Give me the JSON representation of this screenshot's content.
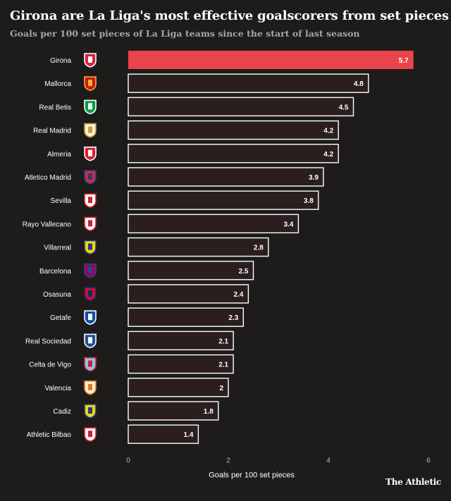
{
  "title": "Girona are La Liga's most effective goalscorers from set pieces",
  "subtitle": "Goals per 100 set pieces of La Liga teams since the start of last season",
  "brand": "The Athletic",
  "chart_data": {
    "type": "bar",
    "orientation": "horizontal",
    "categories": [
      "Girona",
      "Mallorca",
      "Real Betis",
      "Real Madrid",
      "Almeria",
      "Atletico Madrid",
      "Sevilla",
      "Rayo Vallecano",
      "Villarreal",
      "Barcelona",
      "Osasuna",
      "Getafe",
      "Real Sociedad",
      "Celta de Vigo",
      "Valencia",
      "Cadiz",
      "Athletic Bilbao"
    ],
    "values": [
      5.7,
      4.8,
      4.5,
      4.2,
      4.2,
      3.9,
      3.8,
      3.4,
      2.8,
      2.5,
      2.4,
      2.3,
      2.1,
      2.1,
      2,
      1.8,
      1.4
    ],
    "value_labels": [
      "5.7",
      "4.8",
      "4.5",
      "4.2",
      "4.2",
      "3.9",
      "3.8",
      "3.4",
      "2.8",
      "2.5",
      "2.4",
      "2.3",
      "2.1",
      "2.1",
      "2",
      "1.8",
      "1.4"
    ],
    "xlabel": "Goals per 100 set pieces",
    "xlim": [
      0,
      6
    ],
    "xticks": [
      "0",
      "2",
      "4",
      "6"
    ],
    "grid": false,
    "highlight_category": "Girona",
    "colors": {
      "highlight": "#e8454a",
      "bar": "#2a1e1f",
      "bar_border": "#ffffff",
      "label": "#ffffff",
      "tick": "#bdb8b8"
    },
    "icons": [
      "girona-crest-icon",
      "mallorca-crest-icon",
      "real-betis-crest-icon",
      "real-madrid-crest-icon",
      "almeria-crest-icon",
      "atletico-madrid-crest-icon",
      "sevilla-crest-icon",
      "rayo-vallecano-crest-icon",
      "villarreal-crest-icon",
      "barcelona-crest-icon",
      "osasuna-crest-icon",
      "getafe-crest-icon",
      "real-sociedad-crest-icon",
      "celta-de-vigo-crest-icon",
      "valencia-crest-icon",
      "cadiz-crest-icon",
      "athletic-bilbao-crest-icon"
    ],
    "crest_colors": [
      [
        "#d6233a",
        "#ffffff"
      ],
      [
        "#c8102e",
        "#f2b90f"
      ],
      [
        "#0b9b45",
        "#ffffff"
      ],
      [
        "#f4f1e6",
        "#c9a227"
      ],
      [
        "#d81e2c",
        "#ffffff"
      ],
      [
        "#cb2f3a",
        "#1f3f8f"
      ],
      [
        "#ffffff",
        "#d3202f"
      ],
      [
        "#ffffff",
        "#d3202f"
      ],
      [
        "#f6d20d",
        "#1b3d8c"
      ],
      [
        "#a50044",
        "#1c4aa0"
      ],
      [
        "#c8102e",
        "#0a2d6e"
      ],
      [
        "#0f4fa8",
        "#ffffff"
      ],
      [
        "#1a4fa0",
        "#ffffff"
      ],
      [
        "#8ac4ea",
        "#d3202f"
      ],
      [
        "#f4f1e6",
        "#e87a14"
      ],
      [
        "#f6d20d",
        "#1b3d8c"
      ],
      [
        "#ffffff",
        "#d3202f"
      ]
    ]
  }
}
